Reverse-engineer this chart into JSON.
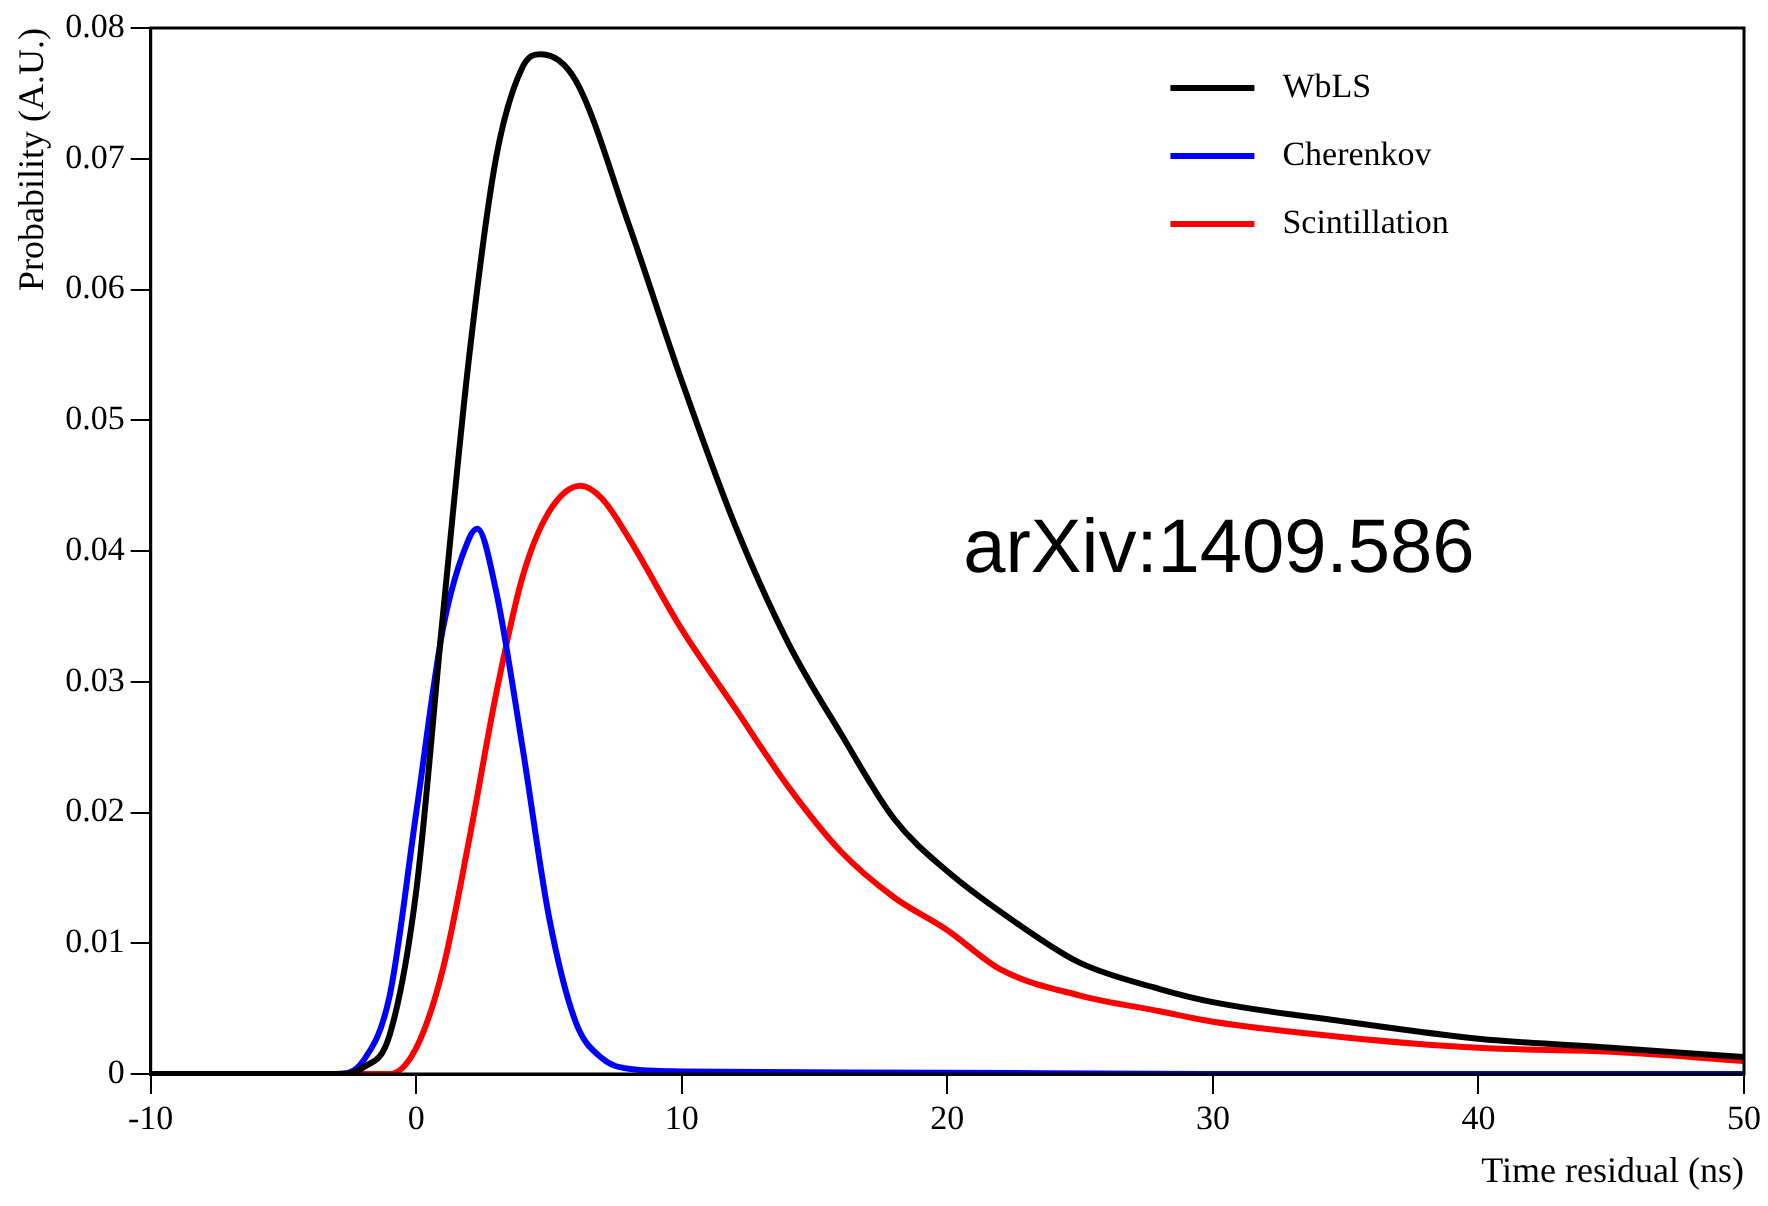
{
  "chart_data": {
    "type": "line",
    "xlabel": "Time residual (ns)",
    "ylabel": "Probability (A.U.)",
    "xlim": [
      -10,
      50
    ],
    "xticks": [
      -10,
      0,
      10,
      20,
      30,
      40,
      50
    ],
    "ylim": [
      0,
      0.08
    ],
    "yticks": [
      0,
      0.01,
      0.02,
      0.03,
      0.04,
      0.05,
      0.06,
      0.07,
      0.08
    ],
    "grid": false,
    "legend": "top right",
    "marker": "none",
    "line_style": "solid",
    "annotations": [
      "arXiv:1409.586"
    ],
    "series": [
      {
        "name": "WbLS",
        "color": "#000000",
        "x": [
          -10,
          -3,
          -2,
          -1,
          0,
          1,
          2,
          3,
          4,
          4.7,
          6,
          8,
          10,
          12,
          14,
          16,
          18,
          20,
          23,
          25,
          28,
          30,
          35,
          40,
          45,
          50
        ],
        "values": [
          0,
          0,
          0.0005,
          0.003,
          0.014,
          0.035,
          0.055,
          0.07,
          0.077,
          0.078,
          0.076,
          0.065,
          0.053,
          0.042,
          0.033,
          0.026,
          0.0195,
          0.0155,
          0.011,
          0.0085,
          0.0065,
          0.0055,
          0.004,
          0.0027,
          0.002,
          0.0013
        ]
      },
      {
        "name": "Cherenkov",
        "color": "#0000ff",
        "x": [
          -10,
          -3,
          -2,
          -1,
          0,
          1,
          2,
          2.3,
          3,
          4,
          5,
          6,
          7,
          8,
          10,
          20,
          30,
          40,
          50
        ],
        "values": [
          0,
          0,
          0.001,
          0.006,
          0.02,
          0.034,
          0.041,
          0.0417,
          0.037,
          0.025,
          0.012,
          0.004,
          0.0012,
          0.0004,
          0.0002,
          0.0001,
          0,
          0,
          0
        ]
      },
      {
        "name": "Scintillation",
        "color": "#ff0000",
        "x": [
          -10,
          -1,
          0,
          1,
          2,
          3,
          4,
          5,
          6.2,
          7,
          8,
          10,
          12,
          14,
          16,
          18,
          20,
          22,
          25,
          28,
          30,
          35,
          40,
          45,
          50
        ],
        "values": [
          0,
          0,
          0.002,
          0.008,
          0.018,
          0.029,
          0.038,
          0.043,
          0.045,
          0.044,
          0.041,
          0.034,
          0.028,
          0.022,
          0.017,
          0.0135,
          0.011,
          0.008,
          0.006,
          0.0048,
          0.004,
          0.0028,
          0.002,
          0.0017,
          0.001
        ]
      }
    ]
  }
}
